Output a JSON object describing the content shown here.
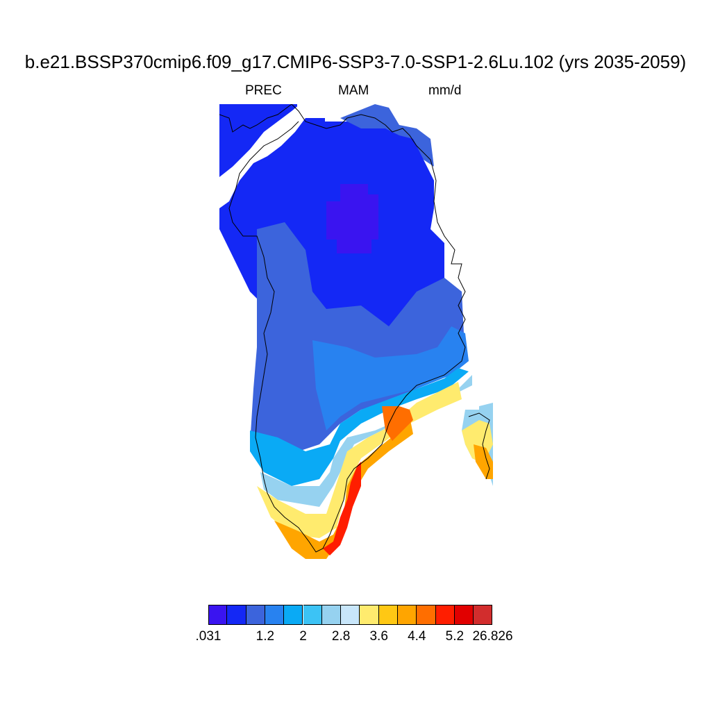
{
  "title": "b.e21.BSSP370cmip6.f09_g17.CMIP6-SSP3-7.0-SSP1-2.6Lu.102 (yrs 2035-2059)",
  "subtitle": {
    "variable": "PREC",
    "season": "MAM",
    "units": "mm/d"
  },
  "colorbar": {
    "colors": [
      "#3a14f0",
      "#1428f5",
      "#3c64dc",
      "#2882f0",
      "#0aaaf5",
      "#3cc3f5",
      "#96d2f0",
      "#c8e6fa",
      "#ffeb6e",
      "#ffc814",
      "#ffa500",
      "#ff6e00",
      "#ff1e00",
      "#e10000",
      "#d22d2d"
    ],
    "labels": [
      ".031",
      "1.2",
      "2",
      "2.8",
      "3.6",
      "4.4",
      "5.2",
      "26.826"
    ]
  },
  "map": {
    "region": "Greenland",
    "field": "precipitation rate, mm/d",
    "pattern": "low values (~1 mm/d) over the interior ice sheet, increasing toward the south-east coast where values exceed 5 mm/d"
  }
}
